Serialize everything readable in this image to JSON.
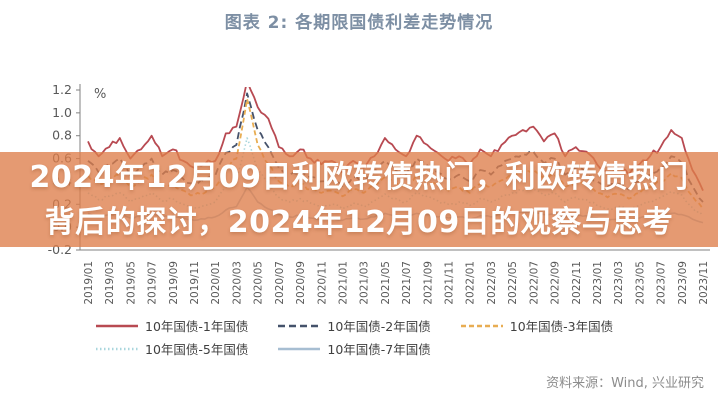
{
  "page": {
    "title": "图表 2:  各期限国债利差走势情况"
  },
  "banner": {
    "line1": "2024年12月09日利欧转债热门，利欧转债热门",
    "line2": "背后的探讨，2024年12月09日的观察与思考",
    "bg_color": "rgba(222,126,74,0.78)",
    "text_color": "#ffffff"
  },
  "source": {
    "label": "资料来源：Wind, 兴业研究"
  },
  "chart_data": {
    "type": "line",
    "title": "图表 2:  各期限国债利差走势情况",
    "ylabel": "%",
    "ylim": [
      -0.2,
      1.2
    ],
    "ytick_step": 0.2,
    "ytick_labels": [
      "-0.2",
      "0.0",
      "0.2",
      "0.4",
      "0.6",
      "0.8",
      "1.0",
      "1.2"
    ],
    "legend_position": "bottom",
    "grid": false,
    "axis_color": "#808080",
    "tick_text_color": "#595959",
    "x": [
      "2019/01",
      "2019/02",
      "2019/03",
      "2019/04",
      "2019/05",
      "2019/06",
      "2019/07",
      "2019/08",
      "2019/09",
      "2019/10",
      "2019/11",
      "2019/12",
      "2020/01",
      "2020/02",
      "2020/03",
      "2020/04",
      "2020/05",
      "2020/06",
      "2020/07",
      "2020/08",
      "2020/09",
      "2020/10",
      "2020/11",
      "2020/12",
      "2021/01",
      "2021/02",
      "2021/03",
      "2021/04",
      "2021/05",
      "2021/06",
      "2021/07",
      "2021/08",
      "2021/09",
      "2021/10",
      "2021/11",
      "2021/12",
      "2022/01",
      "2022/02",
      "2022/03",
      "2022/04",
      "2022/05",
      "2022/06",
      "2022/07",
      "2022/08",
      "2022/09",
      "2022/10",
      "2022/11",
      "2022/12",
      "2023/01",
      "2023/02",
      "2023/03",
      "2023/04",
      "2023/05",
      "2023/06",
      "2023/07",
      "2023/08",
      "2023/09",
      "2023/10",
      "2023/11"
    ],
    "xtick_labels": [
      "2019/01",
      "2019/03",
      "2019/05",
      "2019/07",
      "2019/09",
      "2019/11",
      "2020/01",
      "2020/03",
      "2020/05",
      "2020/07",
      "2020/09",
      "2020/11",
      "2021/01",
      "2021/03",
      "2021/05",
      "2021/07",
      "2021/09",
      "2021/11",
      "2022/01",
      "2022/03",
      "2022/05",
      "2022/07",
      "2022/09",
      "2022/11",
      "2023/01",
      "2023/03",
      "2023/05",
      "2023/07",
      "2023/09",
      "2023/11"
    ],
    "series": [
      {
        "name": "10年国债-1年国债",
        "color": "#b84a52",
        "dash": "",
        "width": 1.8,
        "values": [
          0.75,
          0.62,
          0.7,
          0.78,
          0.6,
          0.68,
          0.8,
          0.62,
          0.68,
          0.58,
          0.52,
          0.55,
          0.58,
          0.82,
          0.88,
          1.28,
          1.05,
          0.95,
          0.7,
          0.62,
          0.68,
          0.6,
          0.55,
          0.58,
          0.48,
          0.58,
          0.52,
          0.62,
          0.78,
          0.68,
          0.62,
          0.8,
          0.72,
          0.65,
          0.58,
          0.62,
          0.55,
          0.68,
          0.62,
          0.72,
          0.8,
          0.85,
          0.88,
          0.75,
          0.82,
          0.62,
          0.7,
          0.66,
          0.55,
          0.48,
          0.52,
          0.46,
          0.55,
          0.62,
          0.7,
          0.85,
          0.78,
          0.5,
          0.32
        ]
      },
      {
        "name": "10年国债-2年国债",
        "color": "#45526b",
        "dash": "7 4",
        "width": 1.8,
        "values": [
          0.58,
          0.48,
          0.55,
          0.6,
          0.45,
          0.52,
          0.6,
          0.46,
          0.5,
          0.42,
          0.38,
          0.4,
          0.45,
          0.65,
          0.72,
          1.17,
          0.85,
          0.7,
          0.52,
          0.46,
          0.5,
          0.44,
          0.4,
          0.42,
          0.36,
          0.44,
          0.4,
          0.48,
          0.58,
          0.5,
          0.46,
          0.6,
          0.54,
          0.48,
          0.42,
          0.46,
          0.4,
          0.5,
          0.46,
          0.54,
          0.6,
          0.64,
          0.66,
          0.56,
          0.6,
          0.46,
          0.52,
          0.48,
          0.4,
          0.35,
          0.38,
          0.33,
          0.4,
          0.46,
          0.52,
          0.62,
          0.56,
          0.36,
          0.22
        ]
      },
      {
        "name": "10年国债-3年国债",
        "color": "#e8ad52",
        "dash": "5 3",
        "width": 1.8,
        "values": [
          0.45,
          0.38,
          0.42,
          0.46,
          0.35,
          0.4,
          0.46,
          0.36,
          0.38,
          0.32,
          0.28,
          0.3,
          0.35,
          0.52,
          0.6,
          1.12,
          0.72,
          0.55,
          0.4,
          0.35,
          0.38,
          0.33,
          0.3,
          0.32,
          0.27,
          0.33,
          0.3,
          0.36,
          0.44,
          0.38,
          0.35,
          0.46,
          0.41,
          0.36,
          0.32,
          0.35,
          0.3,
          0.38,
          0.35,
          0.41,
          0.46,
          0.49,
          0.5,
          0.43,
          0.46,
          0.35,
          0.4,
          0.37,
          0.3,
          0.26,
          0.29,
          0.25,
          0.3,
          0.35,
          0.4,
          0.47,
          0.43,
          0.27,
          0.16
        ]
      },
      {
        "name": "10年国债-5年国债",
        "color": "#a8d6dd",
        "dash": "1.5 2.5",
        "width": 1.6,
        "values": [
          0.3,
          0.24,
          0.27,
          0.3,
          0.22,
          0.26,
          0.3,
          0.23,
          0.25,
          0.2,
          0.17,
          0.19,
          0.22,
          0.35,
          0.42,
          0.78,
          0.5,
          0.38,
          0.26,
          0.22,
          0.25,
          0.21,
          0.18,
          0.2,
          0.16,
          0.21,
          0.18,
          0.23,
          0.29,
          0.25,
          0.22,
          0.3,
          0.27,
          0.23,
          0.2,
          0.22,
          0.19,
          0.25,
          0.22,
          0.27,
          0.3,
          0.32,
          0.33,
          0.28,
          0.3,
          0.22,
          0.26,
          0.24,
          0.19,
          0.16,
          0.18,
          0.15,
          0.19,
          0.22,
          0.26,
          0.31,
          0.28,
          0.17,
          0.1
        ]
      },
      {
        "name": "10年国债-7年国债",
        "color": "#a7bed2",
        "dash": "",
        "width": 1.6,
        "values": [
          0.12,
          0.09,
          0.11,
          0.12,
          0.08,
          0.1,
          0.12,
          0.09,
          0.1,
          0.08,
          0.06,
          0.07,
          0.09,
          0.15,
          0.18,
          0.35,
          0.22,
          0.16,
          0.11,
          0.09,
          0.1,
          0.08,
          0.07,
          0.08,
          0.06,
          0.08,
          0.07,
          0.09,
          0.12,
          0.1,
          0.09,
          0.12,
          0.11,
          0.09,
          0.08,
          0.09,
          0.07,
          0.1,
          0.09,
          0.11,
          0.12,
          0.13,
          0.13,
          0.11,
          0.12,
          0.09,
          0.1,
          0.1,
          0.08,
          0.06,
          0.07,
          0.06,
          0.08,
          0.09,
          0.1,
          0.12,
          0.11,
          0.07,
          0.04
        ]
      }
    ]
  }
}
